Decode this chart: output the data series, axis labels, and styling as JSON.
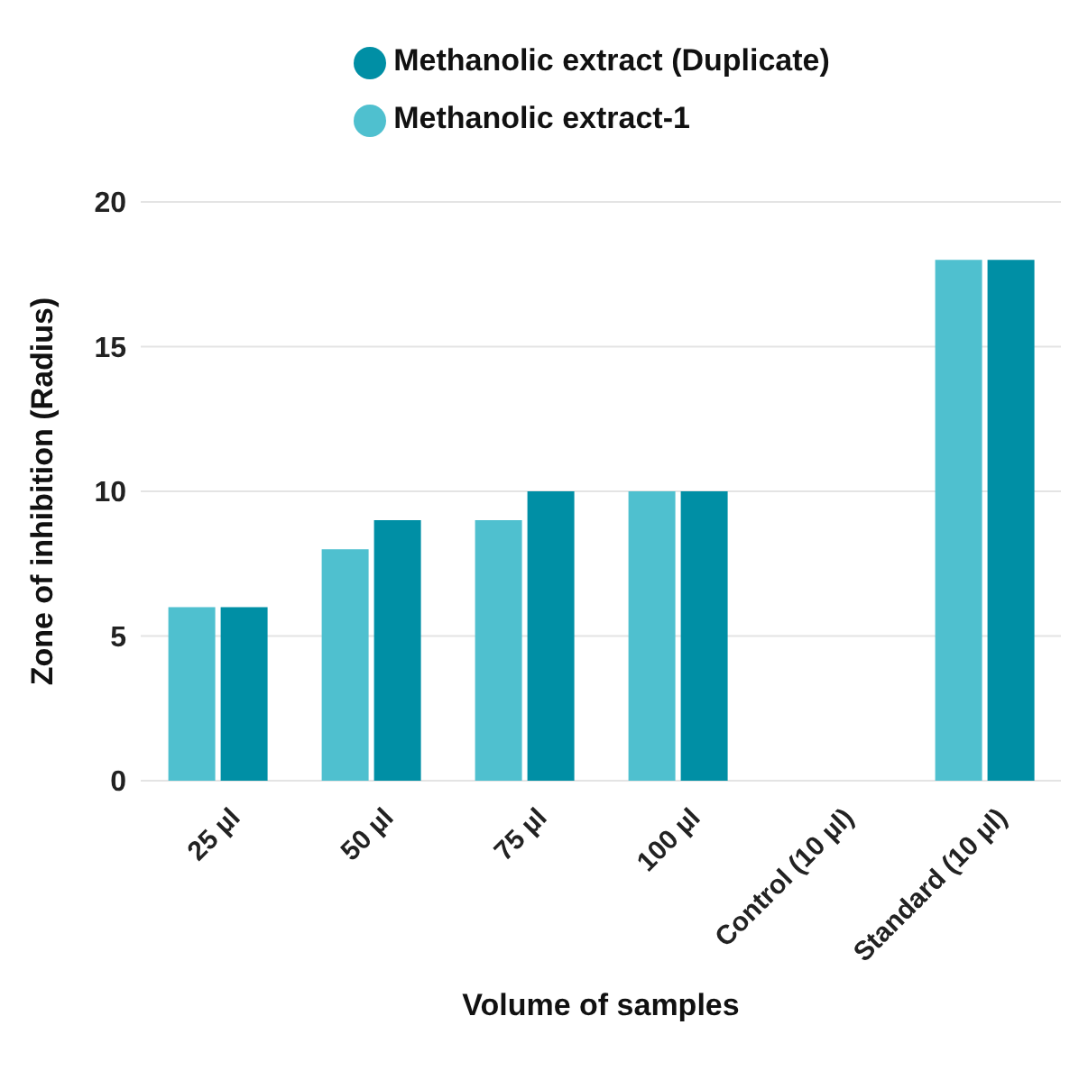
{
  "chart_data": {
    "type": "bar",
    "xlabel": "Volume of samples",
    "ylabel": "Zone of inhibition (Radius)",
    "categories": [
      "25 µl",
      "50 µl",
      "75 µl",
      "100 µl",
      "Control (10 µl)",
      "Standard (10 µl)"
    ],
    "series": [
      {
        "name": "Methanolic extract-1",
        "color": "#4fc0cf",
        "values": [
          6,
          8,
          9,
          10,
          0,
          18
        ]
      },
      {
        "name": "Methanolic extract (Duplicate)",
        "color": "#008fa5",
        "values": [
          6,
          9,
          10,
          10,
          0,
          18
        ]
      }
    ],
    "ylim": [
      0,
      20
    ],
    "yticks": [
      0,
      5,
      10,
      15,
      20
    ],
    "grid": "y",
    "legend": "top"
  }
}
